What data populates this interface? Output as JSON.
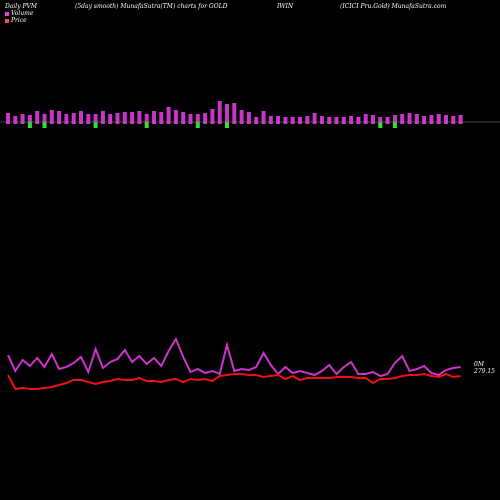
{
  "header": {
    "left": "Daily PVM",
    "smooth": "(5day smooth) MunafaSutra(TM) charts for GOLD",
    "symbol": "IWIN",
    "company": "(ICICI Pru.Gold) MunafaSutra.com"
  },
  "legend": {
    "volume_label": "Volume",
    "price_label": "Price",
    "volume_color": "#e040e0",
    "price_color": "#f05050"
  },
  "labels": {
    "right_top": "0M",
    "right_price": "279.15"
  },
  "colors": {
    "background": "#000000",
    "baseline": "#888888",
    "up_bar": "#cc33cc",
    "down_bar": "#33dd33",
    "volume_line": "#cc33cc",
    "price_line": "#ee1111"
  },
  "chart_data": {
    "type": "bar",
    "volume_bars": [
      {
        "v": 9,
        "up": true
      },
      {
        "v": 6,
        "up": true
      },
      {
        "v": 8,
        "up": true
      },
      {
        "v": 7,
        "up": false
      },
      {
        "v": 11,
        "up": true
      },
      {
        "v": 8,
        "up": false
      },
      {
        "v": 12,
        "up": true
      },
      {
        "v": 11,
        "up": true
      },
      {
        "v": 8,
        "up": true
      },
      {
        "v": 9,
        "up": true
      },
      {
        "v": 11,
        "up": true
      },
      {
        "v": 8,
        "up": true
      },
      {
        "v": 8,
        "up": false
      },
      {
        "v": 11,
        "up": true
      },
      {
        "v": 8,
        "up": true
      },
      {
        "v": 9,
        "up": true
      },
      {
        "v": 10,
        "up": true
      },
      {
        "v": 10,
        "up": true
      },
      {
        "v": 11,
        "up": true
      },
      {
        "v": 8,
        "up": false
      },
      {
        "v": 11,
        "up": true
      },
      {
        "v": 10,
        "up": true
      },
      {
        "v": 15,
        "up": true
      },
      {
        "v": 12,
        "up": true
      },
      {
        "v": 10,
        "up": true
      },
      {
        "v": 8,
        "up": true
      },
      {
        "v": 8,
        "up": false
      },
      {
        "v": 9,
        "up": true
      },
      {
        "v": 13,
        "up": true
      },
      {
        "v": 21,
        "up": true
      },
      {
        "v": 18,
        "up": false
      },
      {
        "v": 19,
        "up": true
      },
      {
        "v": 12,
        "up": true
      },
      {
        "v": 10,
        "up": true
      },
      {
        "v": 5,
        "up": true
      },
      {
        "v": 11,
        "up": true
      },
      {
        "v": 6,
        "up": true
      },
      {
        "v": 6,
        "up": true
      },
      {
        "v": 5,
        "up": true
      },
      {
        "v": 5,
        "up": true
      },
      {
        "v": 5,
        "up": true
      },
      {
        "v": 6,
        "up": true
      },
      {
        "v": 9,
        "up": true
      },
      {
        "v": 6,
        "up": true
      },
      {
        "v": 5,
        "up": true
      },
      {
        "v": 5,
        "up": true
      },
      {
        "v": 5,
        "up": true
      },
      {
        "v": 6,
        "up": true
      },
      {
        "v": 5,
        "up": true
      },
      {
        "v": 8,
        "up": true
      },
      {
        "v": 7,
        "up": true
      },
      {
        "v": 5,
        "up": false
      },
      {
        "v": 5,
        "up": true
      },
      {
        "v": 7,
        "up": false
      },
      {
        "v": 8,
        "up": true
      },
      {
        "v": 9,
        "up": true
      },
      {
        "v": 8,
        "up": true
      },
      {
        "v": 6,
        "up": true
      },
      {
        "v": 7,
        "up": true
      },
      {
        "v": 8,
        "up": true
      },
      {
        "v": 7,
        "up": true
      },
      {
        "v": 6,
        "up": true
      },
      {
        "v": 7,
        "up": true
      }
    ],
    "volume_line": [
      355,
      371,
      360,
      366,
      358,
      367,
      354,
      369,
      367,
      363,
      357,
      372,
      349,
      368,
      362,
      359,
      350,
      362,
      356,
      364,
      358,
      366,
      351,
      339,
      357,
      372,
      369,
      373,
      371,
      374,
      345,
      371,
      369,
      370,
      367,
      353,
      365,
      374,
      367,
      373,
      371,
      373,
      375,
      371,
      365,
      374,
      367,
      362,
      374,
      374,
      372,
      376,
      374,
      363,
      356,
      371,
      369,
      366,
      373,
      375,
      370,
      368,
      367
    ],
    "price_line": [
      375,
      389,
      388,
      389,
      389,
      388,
      387,
      385,
      383,
      380,
      380,
      382,
      384,
      382,
      381,
      379,
      380,
      380,
      378,
      381,
      381,
      382,
      380,
      379,
      382,
      379,
      380,
      379,
      381,
      376,
      375,
      374,
      374,
      375,
      375,
      377,
      376,
      375,
      379,
      376,
      380,
      378,
      378,
      378,
      378,
      377,
      377,
      377,
      378,
      378,
      383,
      379,
      379,
      378,
      376,
      375,
      375,
      374,
      376,
      377,
      374,
      377,
      376
    ],
    "baseline_y": 122,
    "xlabel": "",
    "ylabel": ""
  }
}
